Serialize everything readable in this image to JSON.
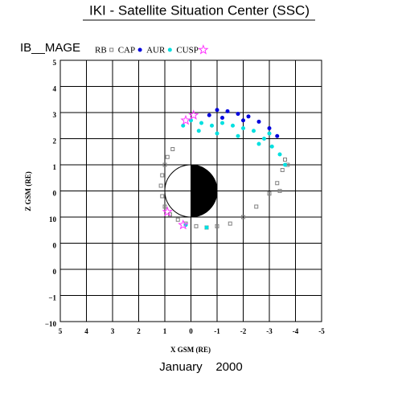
{
  "chart_data": {
    "type": "scatter",
    "title": "IKI - Satellite Situation Center (SSC)",
    "subtitle": "IB__MAGE",
    "xlabel": "X GSM (RE)",
    "ylabel": "Z GSM (RE)",
    "footer": "January    2000",
    "xlim": [
      5,
      -5
    ],
    "ylim": [
      -5,
      5
    ],
    "xticks": [
      5,
      4,
      3,
      2,
      1,
      0,
      -1,
      -2,
      -3,
      -4,
      -5
    ],
    "yticks": [
      5,
      4,
      3,
      2,
      1,
      0,
      {
        "value": -1,
        "label": "10"
      },
      {
        "value": -2,
        "label": "0"
      },
      {
        "value": -3,
        "label": "0"
      },
      {
        "value": -4,
        "label": "−1"
      },
      {
        "value": -5,
        "label": "−10"
      }
    ],
    "grid": true,
    "series": [
      {
        "name": "RB",
        "color": "#808080",
        "marker": "square",
        "x": [
          1.0,
          1.1,
          1.15,
          1.1,
          1.0,
          0.8,
          0.5,
          0.2,
          -0.2,
          -0.6,
          -1.0,
          -1.5,
          -2.0,
          -2.5,
          -3.0,
          -3.3,
          -3.5,
          -3.6,
          0.9,
          0.7,
          -3.7,
          -3.4
        ],
        "values": [
          1.0,
          0.6,
          0.2,
          -0.2,
          -0.6,
          -0.9,
          -1.1,
          -1.25,
          -1.35,
          -1.4,
          -1.35,
          -1.25,
          -1.0,
          -0.6,
          -0.1,
          0.3,
          0.8,
          1.2,
          1.3,
          1.6,
          1.0,
          0.0
        ]
      },
      {
        "name": "CAP",
        "color": "#0000dd",
        "marker": "dot",
        "x": [
          -0.7,
          -1.0,
          -1.4,
          -1.8,
          -2.2,
          -2.6,
          -3.0,
          -3.3,
          -1.2,
          -2.0
        ],
        "values": [
          2.9,
          3.1,
          3.05,
          2.95,
          2.85,
          2.65,
          2.4,
          2.1,
          2.8,
          2.7
        ]
      },
      {
        "name": "AUR",
        "color": "#00e0e0",
        "marker": "dot",
        "x": [
          0.3,
          0,
          -0.4,
          -0.8,
          -1.2,
          -1.6,
          -2.0,
          -2.4,
          -2.8,
          -3.1,
          -3.4,
          -3.6,
          -3.0,
          -0.3,
          -1.0,
          -1.8,
          -2.6,
          0.2,
          -0.6
        ],
        "values": [
          2.5,
          2.7,
          2.6,
          2.5,
          2.6,
          2.5,
          2.4,
          2.3,
          2.0,
          1.7,
          1.4,
          1.0,
          2.2,
          2.3,
          2.2,
          2.1,
          1.8,
          -1.3,
          -1.4
        ]
      },
      {
        "name": "CUSP",
        "color": "#ff33ff",
        "marker": "star",
        "x": [
          0.2,
          -0.1,
          0.9,
          0.3
        ],
        "values": [
          2.7,
          2.9,
          -0.8,
          -1.3
        ]
      }
    ]
  }
}
